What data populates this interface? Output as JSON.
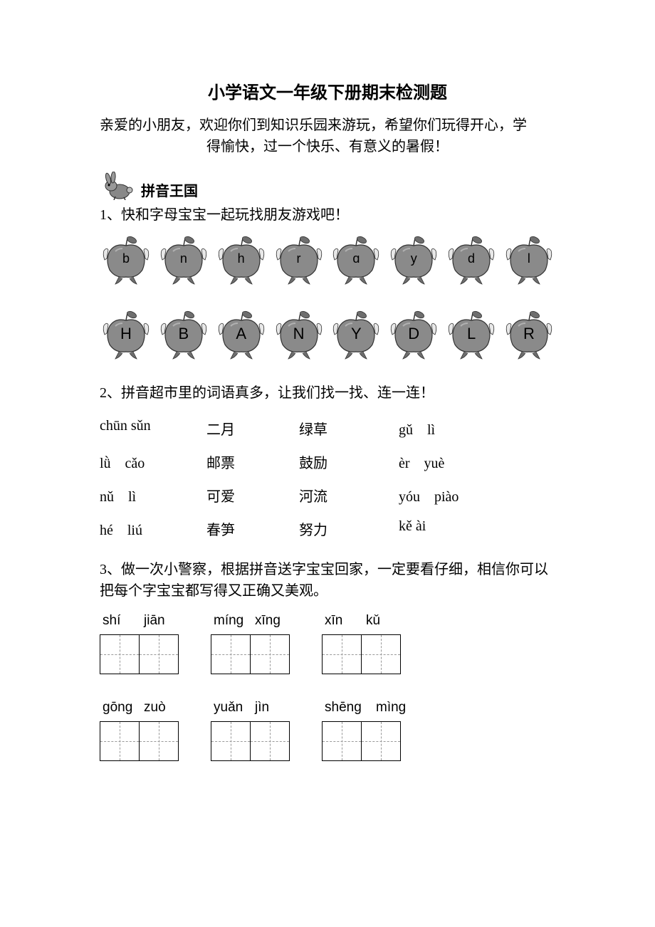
{
  "title": "小学语文一年级下册期末检测题",
  "intro_line1": "亲爱的小朋友，欢迎你们到知识乐园来游玩，希望你们玩得开心，学",
  "intro_line2": "得愉快，过一个快乐、有意义的暑假！",
  "section1": {
    "title": "拼音王国",
    "q1": "1、快和字母宝宝一起玩找朋友游戏吧！",
    "apples_lower": [
      "b",
      "n",
      "h",
      "r",
      "ɑ",
      "y",
      "d",
      "l"
    ],
    "apples_upper": [
      "H",
      "B",
      "A",
      "N",
      "Y",
      "D",
      "L",
      "R"
    ],
    "q2": "2、拼音超市里的词语真多，让我们找一找、连一连！",
    "match_rows": [
      {
        "c1": "chūn sǔn",
        "c2": "二月",
        "c3": "绿草",
        "c4": "gǔ　lì"
      },
      {
        "c1": "lǜ　cǎo",
        "c2": "邮票",
        "c3": "鼓励",
        "c4": "èr　yuè"
      },
      {
        "c1": "nǔ　lì",
        "c2": "可爱",
        "c3": "河流",
        "c4": "yóu　piào"
      },
      {
        "c1": "hé　liú",
        "c2": "春笋",
        "c3": "努力",
        "c4": "kě ài"
      }
    ],
    "q3": "3、做一次小警察，根据拼音送字宝宝回家，一定要看仔细，相信你可以把每个字宝宝都写得又正确又美观。",
    "box_row1": [
      {
        "p1": "shí",
        "p2": "jiān"
      },
      {
        "p1": "míng",
        "p2": "xīng"
      },
      {
        "p1": "xīn",
        "p2": "kǔ"
      }
    ],
    "box_row2": [
      {
        "p1": "gōng",
        "p2": "zuò"
      },
      {
        "p1": "yuǎn",
        "p2": "jìn"
      },
      {
        "p1": "shēng",
        "p2": "mìng"
      }
    ]
  },
  "colors": {
    "apple_fill": "#8a8a8a",
    "apple_stroke": "#333333",
    "leaf_fill": "#6e6e6e",
    "hand_fill": "#e8e8e8",
    "text": "#000000",
    "bg": "#ffffff",
    "box_border": "#000000",
    "box_dash": "#999999"
  },
  "fonts": {
    "title_size": 24,
    "body_size": 20,
    "pinyin_size": 19,
    "apple_letter_size": 18,
    "apple_upper_size": 22
  }
}
